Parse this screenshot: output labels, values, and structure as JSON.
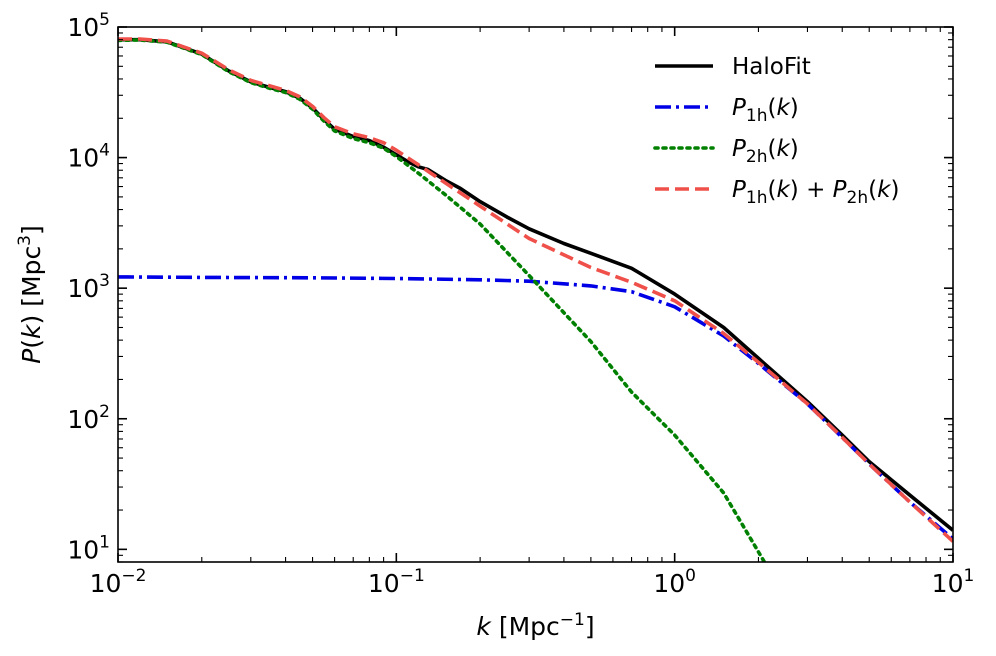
{
  "chart_data": {
    "type": "line",
    "xscale": "log",
    "yscale": "log",
    "xlim": [
      0.01,
      10
    ],
    "ylim": [
      8,
      100000
    ],
    "xlabel": {
      "var": "k",
      "unit_base": "Mpc",
      "unit_exp": "−1"
    },
    "ylabel": {
      "var": "P",
      "arg": "k",
      "unit_base": "Mpc",
      "unit_exp": "3"
    },
    "xticks": [
      {
        "value": 0.01,
        "base": "10",
        "exp": "−2"
      },
      {
        "value": 0.1,
        "base": "10",
        "exp": "−1"
      },
      {
        "value": 1,
        "base": "10",
        "exp": "0"
      },
      {
        "value": 10,
        "base": "10",
        "exp": "1"
      }
    ],
    "yticks": [
      {
        "value": 10,
        "base": "10",
        "exp": "1"
      },
      {
        "value": 100,
        "base": "10",
        "exp": "2"
      },
      {
        "value": 1000,
        "base": "10",
        "exp": "3"
      },
      {
        "value": 10000,
        "base": "10",
        "exp": "4"
      },
      {
        "value": 100000,
        "base": "10",
        "exp": "5"
      }
    ],
    "legend_position": "top-right",
    "series": [
      {
        "name": "HaloFit",
        "color": "#000000",
        "style": "solid",
        "legend": [
          {
            "t": "HaloFit"
          }
        ],
        "x": [
          0.01,
          0.012,
          0.015,
          0.02,
          0.025,
          0.03,
          0.035,
          0.04,
          0.045,
          0.05,
          0.055,
          0.06,
          0.07,
          0.08,
          0.09,
          0.1,
          0.11,
          0.12,
          0.13,
          0.15,
          0.17,
          0.2,
          0.25,
          0.3,
          0.4,
          0.5,
          0.7,
          1,
          1.5,
          2,
          3,
          4,
          5,
          7,
          10
        ],
        "y": [
          80000,
          80000,
          77000,
          62000,
          46000,
          38000,
          34500,
          32000,
          28500,
          24000,
          19500,
          16500,
          14500,
          13500,
          12000,
          10500,
          9300,
          8500,
          8100,
          6700,
          5800,
          4600,
          3500,
          2850,
          2200,
          1850,
          1420,
          900,
          500,
          290,
          135,
          75,
          47,
          26,
          14
        ]
      },
      {
        "name": "P1h(k)",
        "color": "#0000e6",
        "style": "dashdot",
        "legend": [
          {
            "t": "P",
            "i": true
          },
          {
            "t": "1h",
            "sub": true
          },
          {
            "t": "("
          },
          {
            "t": "k",
            "i": true
          },
          {
            "t": ")"
          }
        ],
        "x": [
          0.01,
          0.02,
          0.05,
          0.1,
          0.2,
          0.3,
          0.5,
          0.7,
          1,
          1.5,
          2,
          3,
          4,
          5,
          7,
          10
        ],
        "y": [
          1220,
          1210,
          1200,
          1185,
          1160,
          1130,
          1040,
          940,
          720,
          430,
          265,
          130,
          72,
          45,
          23,
          12
        ]
      },
      {
        "name": "P2h(k)",
        "color": "#008000",
        "style": "dotted",
        "legend": [
          {
            "t": "P",
            "i": true
          },
          {
            "t": "2h",
            "sub": true
          },
          {
            "t": "("
          },
          {
            "t": "k",
            "i": true
          },
          {
            "t": ")"
          }
        ],
        "x": [
          0.01,
          0.012,
          0.015,
          0.02,
          0.025,
          0.03,
          0.035,
          0.04,
          0.045,
          0.05,
          0.055,
          0.06,
          0.07,
          0.08,
          0.09,
          0.1,
          0.12,
          0.15,
          0.2,
          0.3,
          0.5,
          0.7,
          1,
          1.5,
          2.1
        ],
        "y": [
          79000,
          79500,
          76500,
          61500,
          45500,
          37500,
          34000,
          31500,
          28000,
          23500,
          19000,
          16000,
          14000,
          13000,
          11800,
          10200,
          7600,
          5200,
          3100,
          1250,
          390,
          160,
          75,
          27,
          8
        ]
      },
      {
        "name": "P1h(k) + P2h(k)",
        "color": "#f0504a",
        "style": "dashed",
        "legend": [
          {
            "t": "P",
            "i": true
          },
          {
            "t": "1h",
            "sub": true
          },
          {
            "t": "("
          },
          {
            "t": "k",
            "i": true
          },
          {
            "t": ")"
          },
          {
            "t": " + "
          },
          {
            "t": "P",
            "i": true
          },
          {
            "t": "2h",
            "sub": true
          },
          {
            "t": "("
          },
          {
            "t": "k",
            "i": true
          },
          {
            "t": ")"
          }
        ],
        "x": [
          0.01,
          0.012,
          0.015,
          0.02,
          0.025,
          0.03,
          0.035,
          0.04,
          0.045,
          0.05,
          0.055,
          0.06,
          0.07,
          0.08,
          0.09,
          0.1,
          0.12,
          0.15,
          0.2,
          0.3,
          0.5,
          0.7,
          1,
          1.5,
          2,
          3,
          4,
          5,
          7,
          10
        ],
        "y": [
          81000,
          81000,
          78000,
          63000,
          47000,
          39000,
          35500,
          32700,
          29200,
          24700,
          20200,
          17200,
          15200,
          14200,
          13000,
          11400,
          8800,
          6400,
          4250,
          2400,
          1440,
          1110,
          800,
          450,
          270,
          130,
          72,
          45,
          23,
          11.5
        ]
      }
    ]
  }
}
